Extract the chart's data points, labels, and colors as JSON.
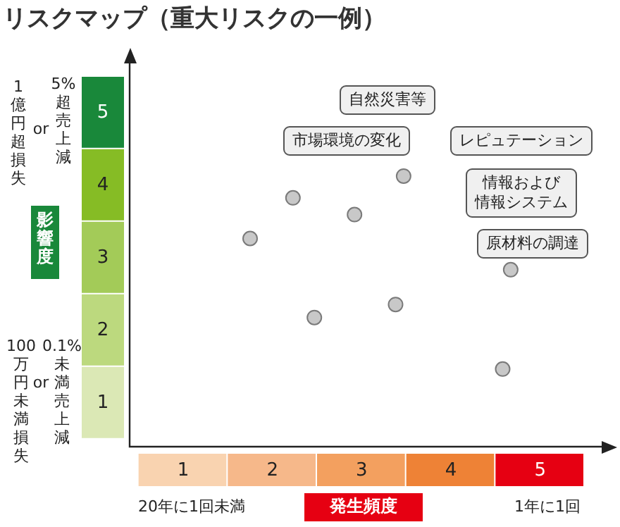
{
  "chart_data": {
    "type": "scatter",
    "title": "リスクマップ（重大リスクの一例）",
    "xlabel": "発生頻度",
    "ylabel": "影響度",
    "x": [
      1.75,
      2.23,
      2.92,
      3.47,
      2.47,
      3.38,
      4.67,
      4.58
    ],
    "values": [
      3.27,
      3.83,
      3.6,
      4.13,
      2.18,
      2.36,
      2.84,
      1.47
    ],
    "color": "#c8c8c8",
    "marker": "circle",
    "legend": false,
    "xlim": [
      0.4,
      5.8
    ],
    "ylim": [
      0.4,
      5.8
    ],
    "xticks": [
      1,
      2,
      3,
      4,
      5
    ],
    "yticks": [
      1,
      2,
      3,
      4,
      5
    ],
    "annotations": [
      "1億円超損失",
      "or",
      "5%超売上減",
      "100万円未満損失",
      "or",
      "0.1%未満売上減",
      "20年に1回未満",
      "1年に1回",
      "自然災害等",
      "市場環境の変化",
      "レピュテーション",
      "情報および情報システム",
      "原材料の調達"
    ]
  }
}
